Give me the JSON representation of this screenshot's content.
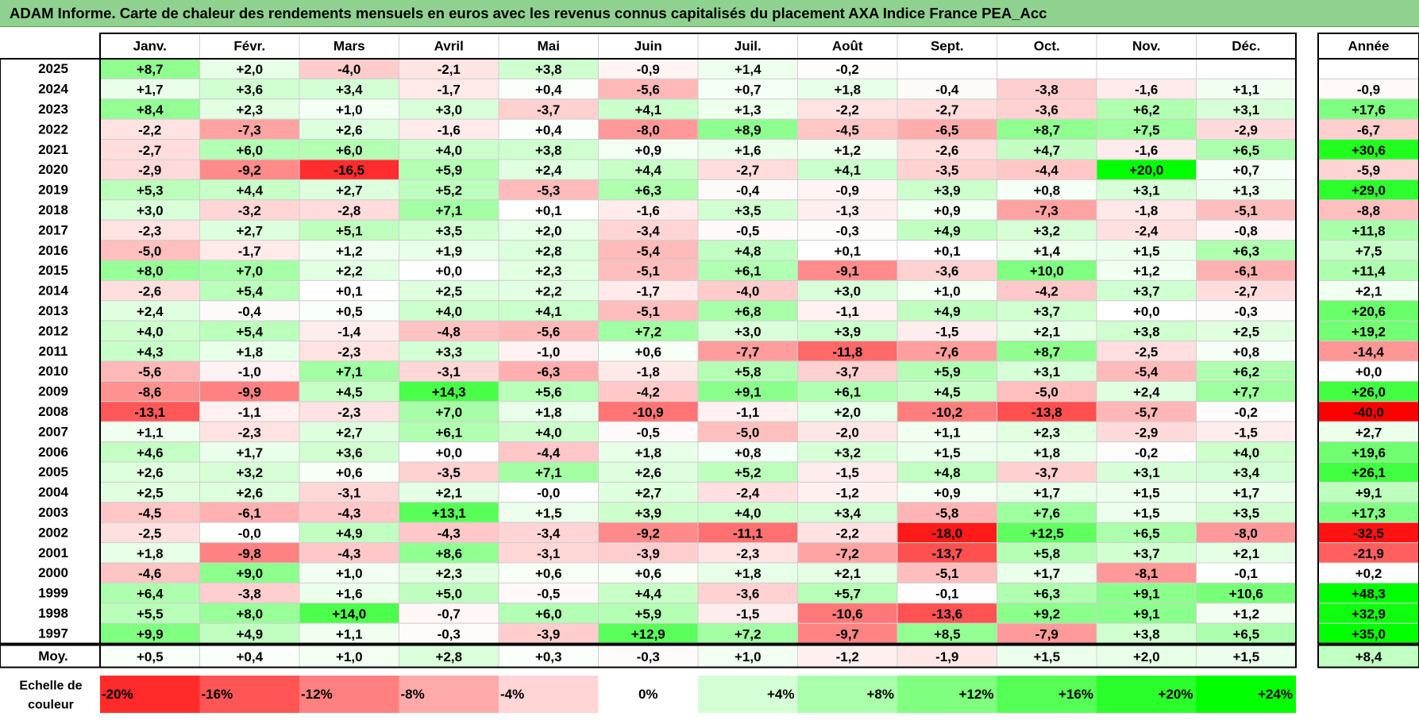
{
  "title": "ADAM Informe. Carte de chaleur des rendements mensuels en euros avec les revenus connus capitalisés du placement AXA Indice France PEA_Acc",
  "chart_data": {
    "type": "heatmap",
    "columns": [
      "Janv.",
      "Févr.",
      "Mars",
      "Avril",
      "Mai",
      "Juin",
      "Juil.",
      "Août",
      "Sept.",
      "Oct.",
      "Nov.",
      "Déc."
    ],
    "year_column_label": "Année",
    "years": [
      "2025",
      "2024",
      "2023",
      "2022",
      "2021",
      "2020",
      "2019",
      "2018",
      "2017",
      "2016",
      "2015",
      "2014",
      "2013",
      "2012",
      "2011",
      "2010",
      "2009",
      "2008",
      "2007",
      "2006",
      "2005",
      "2004",
      "2003",
      "2002",
      "2001",
      "2000",
      "1999",
      "1998",
      "1997"
    ],
    "values": [
      [
        "+8,7",
        "+2,0",
        "-4,0",
        "-2,1",
        "+3,8",
        "-0,9",
        "+1,4",
        "-0,2",
        "",
        "",
        "",
        ""
      ],
      [
        "+1,7",
        "+3,6",
        "+3,4",
        "-1,7",
        "+0,4",
        "-5,6",
        "+0,7",
        "+1,8",
        "-0,4",
        "-3,8",
        "-1,6",
        "+1,1"
      ],
      [
        "+8,4",
        "+2,3",
        "+1,0",
        "+3,0",
        "-3,7",
        "+4,1",
        "+1,3",
        "-2,2",
        "-2,7",
        "-3,6",
        "+6,2",
        "+3,1"
      ],
      [
        "-2,2",
        "-7,3",
        "+2,6",
        "-1,6",
        "+0,4",
        "-8,0",
        "+8,9",
        "-4,5",
        "-6,5",
        "+8,7",
        "+7,5",
        "-2,9"
      ],
      [
        "-2,7",
        "+6,0",
        "+6,0",
        "+4,0",
        "+3,8",
        "+0,9",
        "+1,6",
        "+1,2",
        "-2,6",
        "+4,7",
        "-1,6",
        "+6,5"
      ],
      [
        "-2,9",
        "-9,2",
        "-16,5",
        "+5,9",
        "+2,4",
        "+4,4",
        "-2,7",
        "+4,1",
        "-3,5",
        "-4,4",
        "+20,0",
        "+0,7"
      ],
      [
        "+5,3",
        "+4,4",
        "+2,7",
        "+5,2",
        "-5,3",
        "+6,3",
        "-0,4",
        "-0,9",
        "+3,9",
        "+0,8",
        "+3,1",
        "+1,3"
      ],
      [
        "+3,0",
        "-3,2",
        "-2,8",
        "+7,1",
        "+0,1",
        "-1,6",
        "+3,5",
        "-1,3",
        "+0,9",
        "-7,3",
        "-1,8",
        "-5,1"
      ],
      [
        "-2,3",
        "+2,7",
        "+5,1",
        "+3,5",
        "+2,0",
        "-3,4",
        "-0,5",
        "-0,3",
        "+4,9",
        "+3,2",
        "-2,4",
        "-0,8"
      ],
      [
        "-5,0",
        "-1,7",
        "+1,2",
        "+1,9",
        "+2,8",
        "-5,4",
        "+4,8",
        "+0,1",
        "+0,1",
        "+1,4",
        "+1,5",
        "+6,3"
      ],
      [
        "+8,0",
        "+7,0",
        "+2,2",
        "+0,0",
        "+2,3",
        "-5,1",
        "+6,1",
        "-9,1",
        "-3,6",
        "+10,0",
        "+1,2",
        "-6,1"
      ],
      [
        "-2,6",
        "+5,4",
        "+0,1",
        "+2,5",
        "+2,2",
        "-1,7",
        "-4,0",
        "+3,0",
        "+1,0",
        "-4,2",
        "+3,7",
        "-2,7"
      ],
      [
        "+2,4",
        "-0,4",
        "+0,5",
        "+4,0",
        "+4,1",
        "-5,1",
        "+6,8",
        "-1,1",
        "+4,9",
        "+3,7",
        "+0,0",
        "-0,3"
      ],
      [
        "+4,0",
        "+5,4",
        "-1,4",
        "-4,8",
        "-5,6",
        "+7,2",
        "+3,0",
        "+3,9",
        "-1,5",
        "+2,1",
        "+3,8",
        "+2,5"
      ],
      [
        "+4,3",
        "+1,8",
        "-2,3",
        "+3,3",
        "-1,0",
        "+0,6",
        "-7,7",
        "-11,8",
        "-7,6",
        "+8,7",
        "-2,5",
        "+0,8"
      ],
      [
        "-5,6",
        "-1,0",
        "+7,1",
        "-3,1",
        "-6,3",
        "-1,8",
        "+5,8",
        "-3,7",
        "+5,9",
        "+3,1",
        "-5,4",
        "+6,2"
      ],
      [
        "-8,6",
        "-9,9",
        "+4,5",
        "+14,3",
        "+5,6",
        "-4,2",
        "+9,1",
        "+6,1",
        "+4,5",
        "-5,0",
        "+2,4",
        "+7,7"
      ],
      [
        "-13,1",
        "-1,1",
        "-2,3",
        "+7,0",
        "+1,8",
        "-10,9",
        "-1,1",
        "+2,0",
        "-10,2",
        "-13,8",
        "-5,7",
        "-0,2"
      ],
      [
        "+1,1",
        "-2,3",
        "+2,7",
        "+6,1",
        "+4,0",
        "-0,5",
        "-5,0",
        "-2,0",
        "+1,1",
        "+2,3",
        "-2,9",
        "-1,5"
      ],
      [
        "+4,6",
        "+1,7",
        "+3,6",
        "+0,0",
        "-4,4",
        "+1,8",
        "+0,8",
        "+3,2",
        "+1,5",
        "+1,8",
        "-0,2",
        "+4,0"
      ],
      [
        "+2,6",
        "+3,2",
        "+0,6",
        "-3,5",
        "+7,1",
        "+2,6",
        "+5,2",
        "-1,5",
        "+4,8",
        "-3,7",
        "+3,1",
        "+3,4"
      ],
      [
        "+2,5",
        "+2,6",
        "-3,1",
        "+2,1",
        "-0,0",
        "+2,7",
        "-2,4",
        "-1,2",
        "+0,9",
        "+1,7",
        "+1,5",
        "+1,7"
      ],
      [
        "-4,5",
        "-6,1",
        "-4,3",
        "+13,1",
        "+1,5",
        "+3,9",
        "+4,0",
        "+3,4",
        "-5,8",
        "+7,6",
        "+1,5",
        "+3,5"
      ],
      [
        "-2,5",
        "-0,0",
        "+4,9",
        "-4,3",
        "-3,4",
        "-9,2",
        "-11,1",
        "-2,2",
        "-18,0",
        "+12,5",
        "+6,5",
        "-8,0"
      ],
      [
        "+1,8",
        "-9,8",
        "-4,3",
        "+8,6",
        "-3,1",
        "-3,9",
        "-2,3",
        "-7,2",
        "-13,7",
        "+5,8",
        "+3,7",
        "+2,1"
      ],
      [
        "-4,6",
        "+9,0",
        "+1,0",
        "+2,3",
        "+0,6",
        "+0,6",
        "+1,8",
        "+2,1",
        "-5,1",
        "+1,7",
        "-8,1",
        "-0,1"
      ],
      [
        "+6,4",
        "-3,8",
        "+1,6",
        "+5,0",
        "-0,5",
        "+4,4",
        "-3,6",
        "+5,7",
        "-0,1",
        "+6,3",
        "+9,1",
        "+10,6"
      ],
      [
        "+5,5",
        "+8,0",
        "+14,0",
        "-0,7",
        "+6,0",
        "+5,9",
        "-1,5",
        "-10,6",
        "-13,6",
        "+9,2",
        "+9,1",
        "+1,2"
      ],
      [
        "+9,9",
        "+4,9",
        "+1,1",
        "-0,3",
        "-3,9",
        "+12,9",
        "+7,2",
        "-9,7",
        "+8,5",
        "-7,9",
        "+3,8",
        "+6,5"
      ]
    ],
    "year_totals": [
      "",
      "-0,9",
      "+17,6",
      "-6,7",
      "+30,6",
      "-5,9",
      "+29,0",
      "-8,8",
      "+11,8",
      "+7,5",
      "+11,4",
      "+2,1",
      "+20,6",
      "+19,2",
      "-14,4",
      "+0,0",
      "+26,0",
      "-40,0",
      "+2,7",
      "+19,6",
      "+26,1",
      "+9,1",
      "+17,3",
      "-32,5",
      "-21,9",
      "+0,2",
      "+48,3",
      "+32,9",
      "+35,0"
    ],
    "average_label": "Moy.",
    "averages": [
      "+0,5",
      "+0,4",
      "+1,0",
      "+2,8",
      "+0,3",
      "-0,3",
      "+1,0",
      "-1,2",
      "-1,9",
      "+1,5",
      "+2,0",
      "+1,5"
    ],
    "average_total": "+8,4",
    "scale_label_line1": "Echelle de",
    "scale_label_line2": "couleur",
    "scale_labels": [
      "-20%",
      "-16%",
      "-12%",
      "-8%",
      "-4%",
      "0%",
      "+4%",
      "+8%",
      "+12%",
      "+16%",
      "+20%",
      "+24%"
    ],
    "scale_values": [
      -20,
      -16,
      -12,
      -8,
      -4,
      0,
      4,
      8,
      12,
      16,
      20,
      24
    ]
  }
}
